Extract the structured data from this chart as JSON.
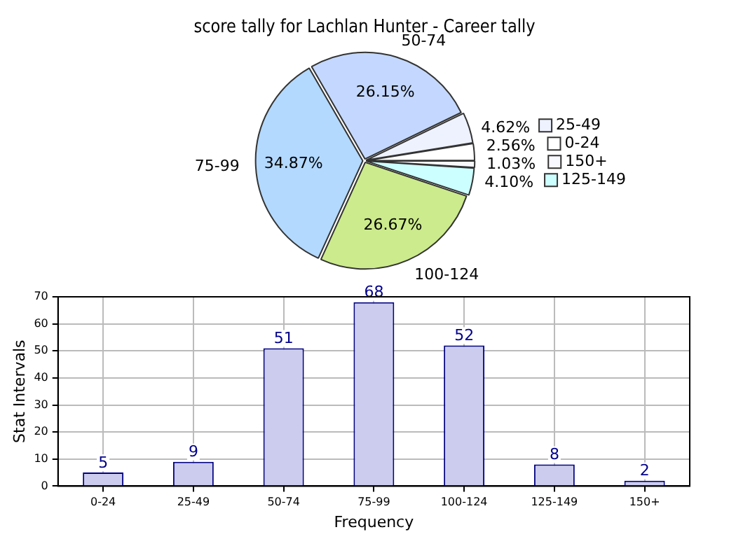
{
  "chart_data": [
    {
      "type": "pie",
      "title": "score tally for Lachlan Hunter - Career tally",
      "categories": [
        "150+",
        "125-149",
        "100-124",
        "75-99",
        "50-74",
        "25-49",
        "0-24"
      ],
      "values": [
        1.03,
        4.1,
        26.67,
        34.87,
        26.15,
        4.62,
        2.56
      ],
      "colors": [
        "#f8f8ff",
        "#ccffff",
        "#cceb8c",
        "#b3d9ff",
        "#c4d8ff",
        "#eef2ff",
        "#ffffff"
      ],
      "value_labels": [
        "1.03%",
        "4.10%",
        "26.67%",
        "34.87%",
        "26.15%",
        "4.62%",
        "2.56%"
      ],
      "legend": "right"
    },
    {
      "type": "bar",
      "xlabel": "Frequency",
      "ylabel": "Stat Intervals",
      "categories": [
        "0-24",
        "25-49",
        "50-74",
        "75-99",
        "100-124",
        "125-149",
        "150+"
      ],
      "values": [
        5,
        9,
        51,
        68,
        52,
        8,
        2
      ],
      "color": "#ccccee",
      "ylim": [
        0,
        70
      ],
      "yticks": [
        0,
        10,
        20,
        30,
        40,
        50,
        60,
        70
      ],
      "grid": true,
      "data_labels": true
    }
  ]
}
